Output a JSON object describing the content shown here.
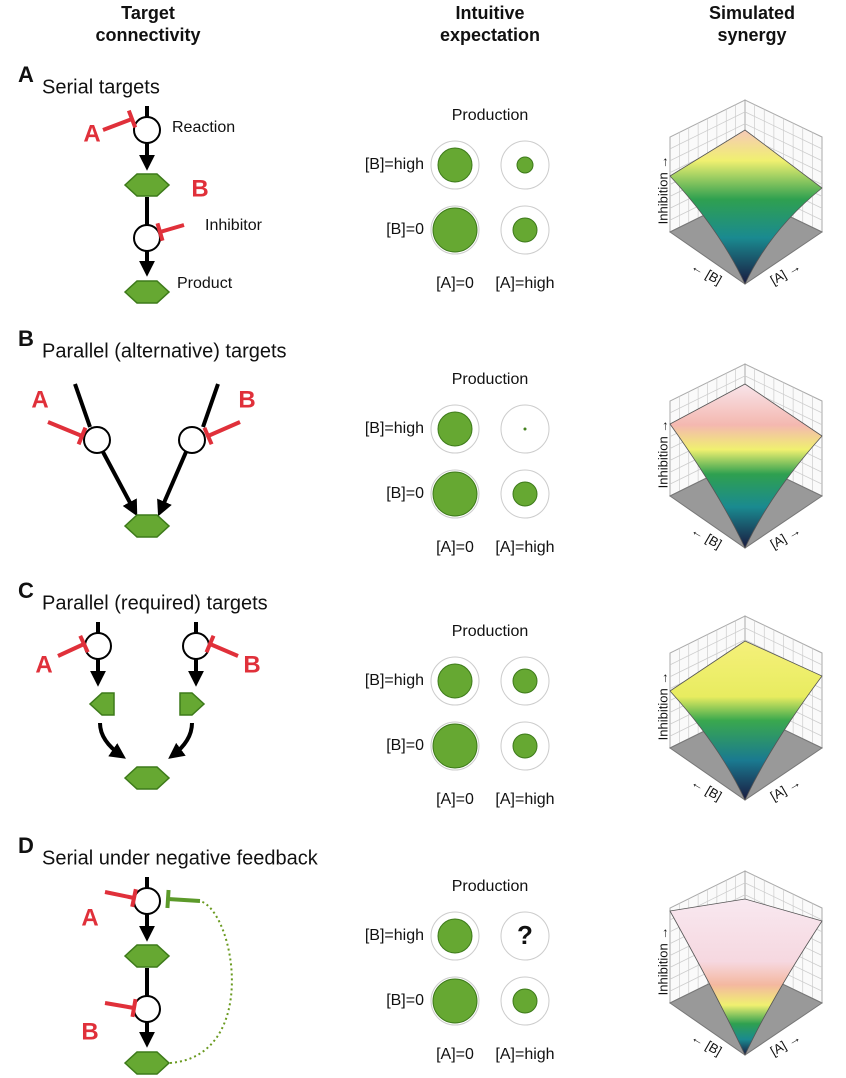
{
  "headers": [
    {
      "lines": [
        "Target",
        "connectivity"
      ]
    },
    {
      "lines": [
        "Intuitive",
        "expectation"
      ]
    },
    {
      "lines": [
        "Simulated",
        "synergy"
      ]
    }
  ],
  "panels": [
    {
      "letter": "A",
      "title": "Serial targets",
      "diagram": {
        "inhibitor_a": "A",
        "inhibitor_b": "B",
        "reaction": "Reaction",
        "inhibitor": "Inhibitor",
        "product": "Product"
      },
      "expectation": {
        "title": "Production",
        "row_labels": [
          "[B]=high",
          "[B]=0"
        ],
        "col_labels": [
          "[A]=0",
          "[A]=high"
        ]
      },
      "synergy": {
        "z_label": "Inhibition →",
        "y_label": "← [B]",
        "x_label": "[A] →"
      }
    },
    {
      "letter": "B",
      "title": "Parallel (alternative) targets",
      "diagram": {
        "inhibitor_a": "A",
        "inhibitor_b": "B"
      },
      "expectation": {
        "title": "Production",
        "row_labels": [
          "[B]=high",
          "[B]=0"
        ],
        "col_labels": [
          "[A]=0",
          "[A]=high"
        ]
      },
      "synergy": {
        "z_label": "Inhibition →",
        "y_label": "← [B]",
        "x_label": "[A] →"
      }
    },
    {
      "letter": "C",
      "title": "Parallel (required) targets",
      "diagram": {
        "inhibitor_a": "A",
        "inhibitor_b": "B"
      },
      "expectation": {
        "title": "Production",
        "row_labels": [
          "[B]=high",
          "[B]=0"
        ],
        "col_labels": [
          "[A]=0",
          "[A]=high"
        ]
      },
      "synergy": {
        "z_label": "Inhibition →",
        "y_label": "← [B]",
        "x_label": "[A] →"
      }
    },
    {
      "letter": "D",
      "title": "Serial under negative feedback",
      "diagram": {
        "inhibitor_a": "A",
        "inhibitor_b": "B"
      },
      "expectation": {
        "title": "Production",
        "row_labels": [
          "[B]=high",
          "[B]=0"
        ],
        "col_labels": [
          "[A]=0",
          "[A]=high"
        ],
        "unknown": "?"
      },
      "synergy": {
        "z_label": "Inhibition →",
        "y_label": "← [B]",
        "x_label": "[A] →"
      }
    }
  ]
}
